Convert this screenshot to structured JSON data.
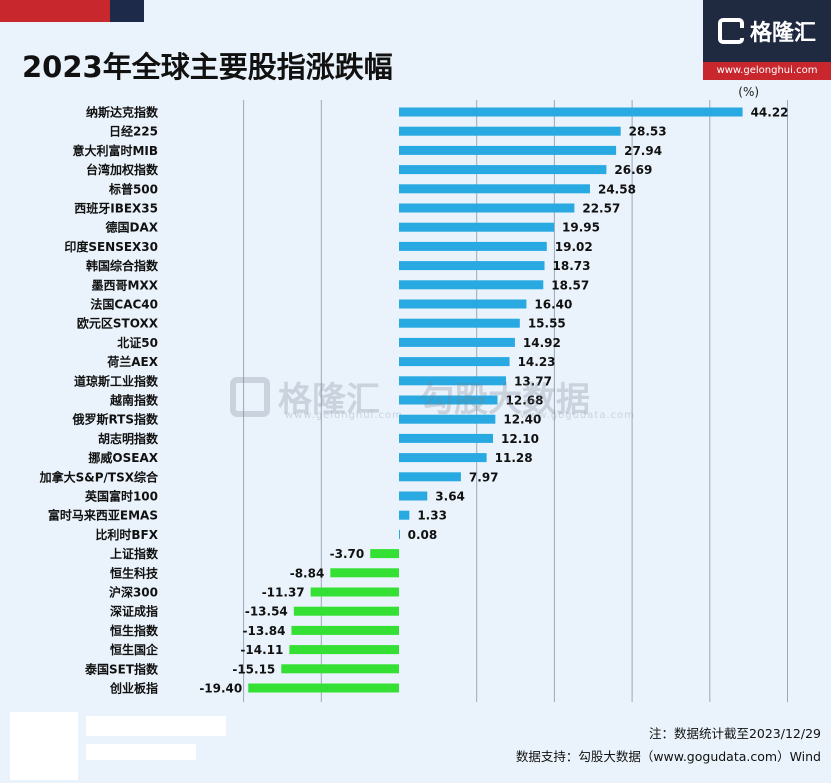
{
  "header": {
    "title": "2023年全球主要股指涨跌幅",
    "logo_text": "格隆汇",
    "logo_url": "www.gelonghui.com"
  },
  "watermark": {
    "left_text": "格隆汇",
    "left_url": "www.gelonghui.com",
    "right_text": "勾股大数据",
    "right_url": "www.gogudata.com"
  },
  "footer": {
    "note": "注：数据统计截至2023/12/29",
    "source": "数据支持：勾股大数据（www.gogudata.com）Wind"
  },
  "colors": {
    "positive": "#29a9e1",
    "negative": "#33e033",
    "gridline": "#9aa8b8",
    "background": "#eaf3fb",
    "brand_red": "#c8272d",
    "brand_navy": "#1f2940"
  },
  "chart_data": {
    "type": "bar",
    "orientation": "horizontal",
    "unit_label": "(%)",
    "xlim": [
      -25,
      50
    ],
    "grid": true,
    "categories": [
      "纳斯达克指数",
      "日经225",
      "意大利富时MIB",
      "台湾加权指数",
      "标普500",
      "西班牙IBEX35",
      "德国DAX",
      "印度SENSEX30",
      "韩国综合指数",
      "墨西哥MXX",
      "法国CAC40",
      "欧元区STOXX",
      "北证50",
      "荷兰AEX",
      "道琼斯工业指数",
      "越南指数",
      "俄罗斯RTS指数",
      "胡志明指数",
      "挪威OSEAX",
      "加拿大S&P/TSX综合",
      "英国富时100",
      "富时马来西亚EMAS",
      "比利时BFX",
      "上证指数",
      "恒生科技",
      "沪深300",
      "深证成指",
      "恒生指数",
      "恒生国企",
      "泰国SET指数",
      "创业板指"
    ],
    "values": [
      44.22,
      28.53,
      27.94,
      26.69,
      24.58,
      22.57,
      19.95,
      19.02,
      18.73,
      18.57,
      16.4,
      15.55,
      14.92,
      14.23,
      13.77,
      12.68,
      12.4,
      12.1,
      11.28,
      7.97,
      3.64,
      1.33,
      0.08,
      -3.7,
      -8.84,
      -11.37,
      -13.54,
      -13.84,
      -14.11,
      -15.15,
      -19.4
    ],
    "value_labels": [
      "44.22",
      "28.53",
      "27.94",
      "26.69",
      "24.58",
      "22.57",
      "19.95",
      "19.02",
      "18.73",
      "18.57",
      "16.40",
      "15.55",
      "14.92",
      "14.23",
      "13.77",
      "12.68",
      "12.40",
      "12.10",
      "11.28",
      "7.97",
      "3.64",
      "1.33",
      "0.08",
      "-3.70",
      "-8.84",
      "-11.37",
      "-13.54",
      "-13.84",
      "-14.11",
      "-15.15",
      "-19.40"
    ]
  }
}
